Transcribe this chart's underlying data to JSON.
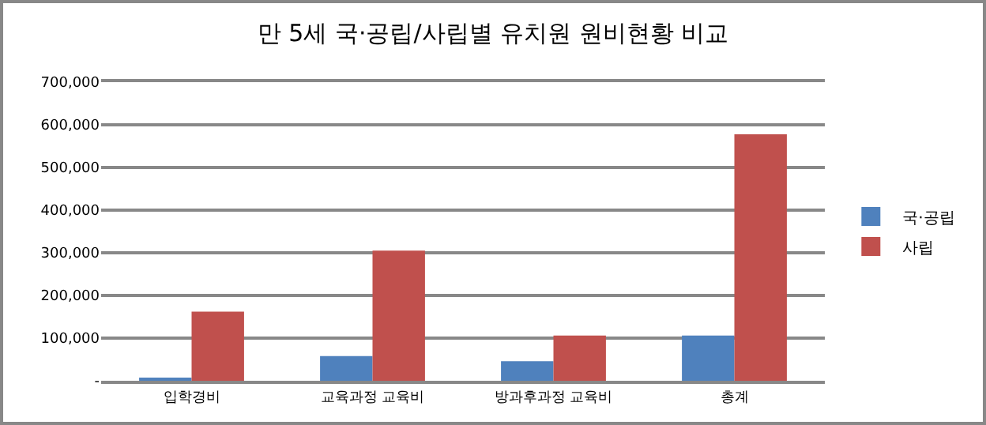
{
  "chart_data": {
    "type": "bar",
    "title": "만 5세 국·공립/사립별 유치원 원비현황 비교",
    "categories": [
      "입학경비",
      "교육과정 교육비",
      "방과후과정 교육비",
      "총계"
    ],
    "series": [
      {
        "name": "국·공립",
        "color": "#4f81bd",
        "values": [
          5000,
          58000,
          46000,
          106000
        ]
      },
      {
        "name": "사립",
        "color": "#c0504d",
        "values": [
          162000,
          305000,
          106000,
          578000
        ]
      }
    ],
    "ylim": [
      0,
      700000
    ],
    "yticks": [
      {
        "value": 0,
        "label": "-"
      },
      {
        "value": 100000,
        "label": "100,000"
      },
      {
        "value": 200000,
        "label": "200,000"
      },
      {
        "value": 300000,
        "label": "300,000"
      },
      {
        "value": 400000,
        "label": "400,000"
      },
      {
        "value": 500000,
        "label": "500,000"
      },
      {
        "value": 600000,
        "label": "600,000"
      },
      {
        "value": 700000,
        "label": "700,000"
      }
    ],
    "grid": "y",
    "legend": "right"
  }
}
